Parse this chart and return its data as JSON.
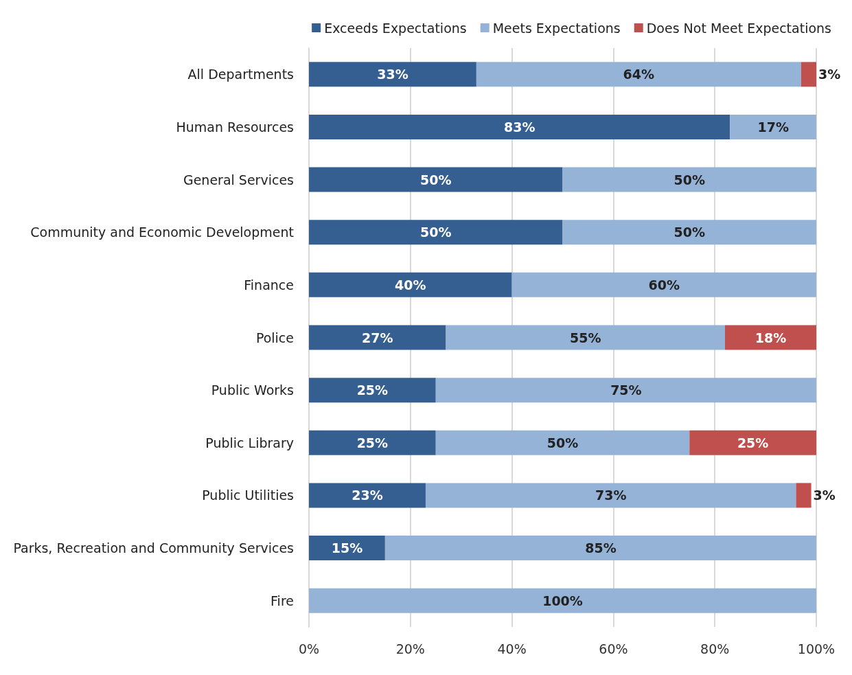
{
  "chart_data": {
    "type": "bar",
    "orientation": "horizontal",
    "stacked": true,
    "categories": [
      "All Departments",
      "Human Resources",
      "General Services",
      "Community and Economic Development",
      "Finance",
      "Police",
      "Public Works",
      "Public Library",
      "Public Utilities",
      "Parks, Recreation and Community Services",
      "Fire"
    ],
    "series": [
      {
        "name": "Exceeds Expectations",
        "color": "#355f91",
        "values": [
          33,
          83,
          50,
          50,
          40,
          27,
          25,
          25,
          23,
          15,
          null
        ],
        "value_labels": [
          "33%",
          "83%",
          "50%",
          "50%",
          "40%",
          "27%",
          "25%",
          "25%",
          "23%",
          "15%",
          null
        ]
      },
      {
        "name": "Meets Expectations",
        "color": "#95b3d7",
        "values": [
          64,
          17,
          50,
          50,
          60,
          55,
          75,
          50,
          73,
          85,
          100
        ],
        "value_labels": [
          "64%",
          "17%",
          "50%",
          "50%",
          "60%",
          "55%",
          "75%",
          "50%",
          "73%",
          "85%",
          "100%"
        ]
      },
      {
        "name": "Does Not Meet Expectations",
        "color": "#c0504d",
        "values": [
          3,
          null,
          null,
          null,
          null,
          18,
          null,
          25,
          3,
          null,
          null
        ],
        "value_labels": [
          "3%",
          null,
          null,
          null,
          null,
          "18%",
          null,
          "25%",
          "3%",
          null,
          null
        ]
      }
    ],
    "xlim": [
      0,
      100
    ],
    "xticks": [
      {
        "value": 0,
        "label": "0%"
      },
      {
        "value": 20,
        "label": "20%"
      },
      {
        "value": 40,
        "label": "40%"
      },
      {
        "value": 60,
        "label": "60%"
      },
      {
        "value": 80,
        "label": "80%"
      },
      {
        "value": 100,
        "label": "100%"
      }
    ],
    "grid": "x",
    "legend": "top right"
  }
}
